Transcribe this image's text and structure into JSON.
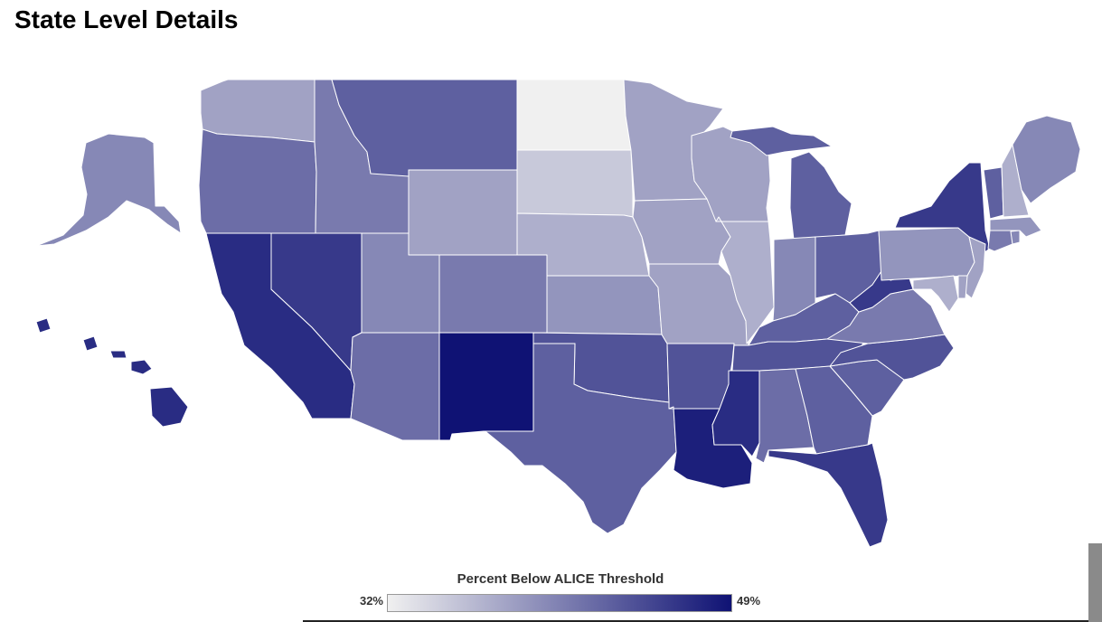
{
  "title": "State Level Details",
  "legend": {
    "title": "Percent Below ALICE Threshold",
    "min_label": "32%",
    "max_label": "49%",
    "min_value": 32,
    "max_value": 49,
    "color_low": "#f0f0f0",
    "color_high": "#0f1274"
  },
  "states": [
    {
      "id": "WA",
      "name": "Washington",
      "value": 38
    },
    {
      "id": "OR",
      "name": "Oregon",
      "value": 42
    },
    {
      "id": "CA",
      "name": "California",
      "value": 47
    },
    {
      "id": "NV",
      "name": "Nevada",
      "value": 46
    },
    {
      "id": "ID",
      "name": "Idaho",
      "value": 41
    },
    {
      "id": "MT",
      "name": "Montana",
      "value": 43
    },
    {
      "id": "WY",
      "name": "Wyoming",
      "value": 38
    },
    {
      "id": "UT",
      "name": "Utah",
      "value": 40
    },
    {
      "id": "CO",
      "name": "Colorado",
      "value": 41
    },
    {
      "id": "AZ",
      "name": "Arizona",
      "value": 42
    },
    {
      "id": "NM",
      "name": "New Mexico",
      "value": 49
    },
    {
      "id": "ND",
      "name": "North Dakota",
      "value": 32
    },
    {
      "id": "SD",
      "name": "South Dakota",
      "value": 35
    },
    {
      "id": "NE",
      "name": "Nebraska",
      "value": 37
    },
    {
      "id": "KS",
      "name": "Kansas",
      "value": 39
    },
    {
      "id": "OK",
      "name": "Oklahoma",
      "value": 44
    },
    {
      "id": "TX",
      "name": "Texas",
      "value": 43
    },
    {
      "id": "MN",
      "name": "Minnesota",
      "value": 38
    },
    {
      "id": "IA",
      "name": "Iowa",
      "value": 38
    },
    {
      "id": "MO",
      "name": "Missouri",
      "value": 38
    },
    {
      "id": "AR",
      "name": "Arkansas",
      "value": 44
    },
    {
      "id": "LA",
      "name": "Louisiana",
      "value": 48
    },
    {
      "id": "WI",
      "name": "Wisconsin",
      "value": 38
    },
    {
      "id": "IL",
      "name": "Illinois",
      "value": 37
    },
    {
      "id": "MI",
      "name": "Michigan",
      "value": 43
    },
    {
      "id": "IN",
      "name": "Indiana",
      "value": 40
    },
    {
      "id": "OH",
      "name": "Ohio",
      "value": 43
    },
    {
      "id": "KY",
      "name": "Kentucky",
      "value": 43
    },
    {
      "id": "TN",
      "name": "Tennessee",
      "value": 44
    },
    {
      "id": "MS",
      "name": "Mississippi",
      "value": 47
    },
    {
      "id": "AL",
      "name": "Alabama",
      "value": 42
    },
    {
      "id": "GA",
      "name": "Georgia",
      "value": 43
    },
    {
      "id": "FL",
      "name": "Florida",
      "value": 46
    },
    {
      "id": "SC",
      "name": "South Carolina",
      "value": 43
    },
    {
      "id": "NC",
      "name": "North Carolina",
      "value": 44
    },
    {
      "id": "VA",
      "name": "Virginia",
      "value": 41
    },
    {
      "id": "WV",
      "name": "West Virginia",
      "value": 46
    },
    {
      "id": "PA",
      "name": "Pennsylvania",
      "value": 39
    },
    {
      "id": "NY",
      "name": "New York",
      "value": 46
    },
    {
      "id": "NJ",
      "name": "New Jersey",
      "value": 38
    },
    {
      "id": "DE",
      "name": "Delaware",
      "value": 38
    },
    {
      "id": "MD",
      "name": "Maryland",
      "value": 37
    },
    {
      "id": "CT",
      "name": "Connecticut",
      "value": 41
    },
    {
      "id": "RI",
      "name": "Rhode Island",
      "value": 40
    },
    {
      "id": "MA",
      "name": "Massachusetts",
      "value": 39
    },
    {
      "id": "VT",
      "name": "Vermont",
      "value": 43
    },
    {
      "id": "NH",
      "name": "New Hampshire",
      "value": 37
    },
    {
      "id": "ME",
      "name": "Maine",
      "value": 40
    },
    {
      "id": "AK",
      "name": "Alaska",
      "value": 40
    },
    {
      "id": "HI",
      "name": "Hawaii",
      "value": 47
    }
  ]
}
